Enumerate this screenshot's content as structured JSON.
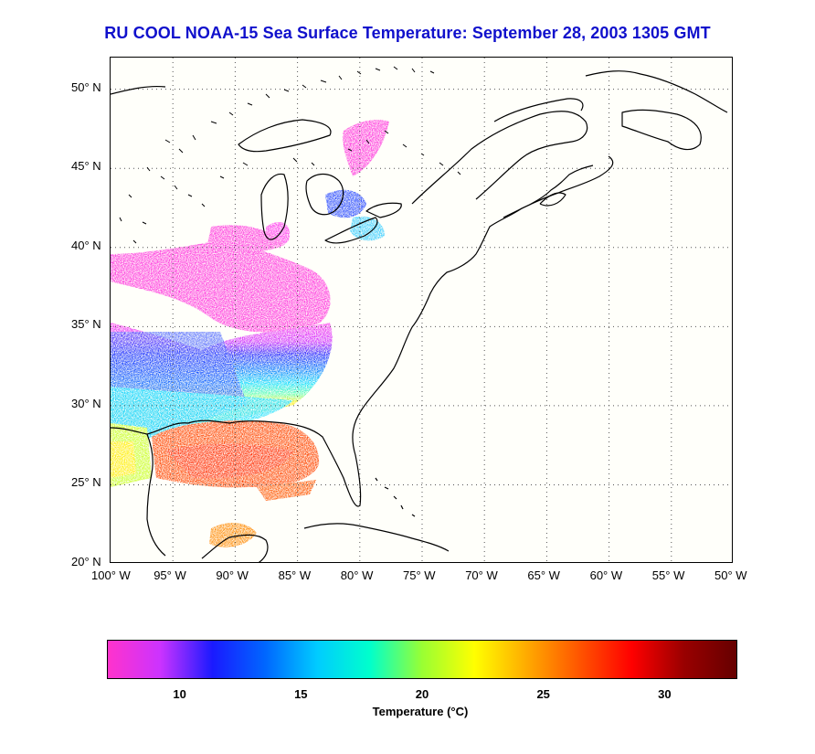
{
  "title": "RU COOL  NOAA-15  Sea Surface Temperature:  September 28, 2003 1305 GMT",
  "map": {
    "lon_range": [
      -100,
      -50
    ],
    "lat_range": [
      20,
      52
    ],
    "lon_ticks": [
      {
        "value": -100,
        "label": "100° W"
      },
      {
        "value": -95,
        "label": "95° W"
      },
      {
        "value": -90,
        "label": "90° W"
      },
      {
        "value": -85,
        "label": "85° W"
      },
      {
        "value": -80,
        "label": "80° W"
      },
      {
        "value": -75,
        "label": "75° W"
      },
      {
        "value": -70,
        "label": "70° W"
      },
      {
        "value": -65,
        "label": "65° W"
      },
      {
        "value": -60,
        "label": "60° W"
      },
      {
        "value": -55,
        "label": "55° W"
      },
      {
        "value": -50,
        "label": "50° W"
      }
    ],
    "lat_ticks": [
      {
        "value": 50,
        "label": "50° N"
      },
      {
        "value": 45,
        "label": "45° N"
      },
      {
        "value": 40,
        "label": "40° N"
      },
      {
        "value": 35,
        "label": "35° N"
      },
      {
        "value": 30,
        "label": "30° N"
      },
      {
        "value": 25,
        "label": "25° N"
      },
      {
        "value": 20,
        "label": "20° N"
      }
    ],
    "grid": "dotted",
    "coast_color": "#000000"
  },
  "colorbar": {
    "range": [
      7,
      33
    ],
    "ticks": [
      10,
      15,
      20,
      25,
      30
    ],
    "label": "Temperature (°C)",
    "colors": [
      "#ff33cc",
      "#cc33ff",
      "#1a1aff",
      "#0066ff",
      "#00ccff",
      "#00ffcc",
      "#99ff33",
      "#ffff00",
      "#ffaa00",
      "#ff5500",
      "#ff0000",
      "#990000",
      "#660000"
    ]
  }
}
